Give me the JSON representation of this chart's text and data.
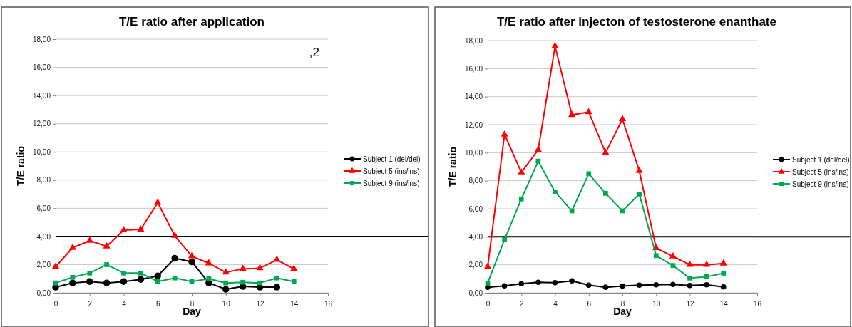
{
  "chart_data": [
    {
      "type": "line",
      "title": "T/E ratio after application",
      "xlabel": "Day",
      "ylabel": "T/E ratio",
      "annotations": [
        ",2"
      ],
      "xlim": [
        0,
        16
      ],
      "xticks": [
        0,
        2,
        4,
        6,
        8,
        10,
        12,
        14,
        16
      ],
      "ylim": [
        0,
        18
      ],
      "yticks": [
        {
          "value": 0,
          "label": "0,00"
        },
        {
          "value": 2,
          "label": "2,00"
        },
        {
          "value": 4,
          "label": "4,00"
        },
        {
          "value": 6,
          "label": "6,00"
        },
        {
          "value": 8,
          "label": "8,00"
        },
        {
          "value": 10,
          "label": "10,00"
        },
        {
          "value": 12,
          "label": "12,00"
        },
        {
          "value": 14,
          "label": "14,00"
        },
        {
          "value": 16,
          "label": "16,00"
        },
        {
          "value": 18,
          "label": "18,00"
        }
      ],
      "grid": "y",
      "legend": "right",
      "line_style": "solid",
      "ref_lines": [
        {
          "axis": "y",
          "value": 4,
          "color": "#000000"
        }
      ],
      "series": [
        {
          "name": "Subject 1 (del/del)",
          "color": "#000000",
          "marker": "circle",
          "x": [
            0,
            1,
            2,
            3,
            4,
            5,
            6,
            7,
            8,
            9,
            10,
            11,
            12,
            13
          ],
          "values": [
            0.4,
            0.7,
            0.8,
            0.7,
            0.8,
            0.95,
            1.2,
            2.45,
            2.2,
            0.7,
            0.25,
            0.45,
            0.4,
            0.4
          ]
        },
        {
          "name": "Subject 5 (ins/ins)",
          "color": "#ff0000",
          "marker": "triangle",
          "x": [
            0,
            1,
            2,
            3,
            4,
            5,
            6,
            7,
            8,
            9,
            10,
            11,
            12,
            13,
            14
          ],
          "values": [
            1.85,
            3.2,
            3.7,
            3.3,
            4.45,
            4.5,
            6.4,
            4.05,
            2.6,
            2.1,
            1.45,
            1.7,
            1.75,
            2.35,
            1.7
          ]
        },
        {
          "name": "Subject 9 (ins/ins)",
          "color": "#00a84f",
          "marker": "square",
          "x": [
            0,
            1,
            2,
            3,
            4,
            5,
            6,
            7,
            8,
            9,
            10,
            11,
            12,
            13,
            14
          ],
          "values": [
            0.7,
            1.1,
            1.4,
            2.0,
            1.4,
            1.4,
            0.8,
            1.05,
            0.8,
            1.0,
            0.7,
            0.75,
            0.7,
            1.05,
            0.8
          ]
        }
      ]
    },
    {
      "type": "line",
      "title": "T/E ratio after injecton of testosterone enanthate",
      "xlabel": "Day",
      "ylabel": "T/E ratio",
      "xlim": [
        0,
        16
      ],
      "xticks": [
        0,
        2,
        4,
        6,
        8,
        10,
        12,
        14,
        16
      ],
      "ylim": [
        0,
        18
      ],
      "yticks": [
        {
          "value": 0,
          "label": "0,00"
        },
        {
          "value": 2,
          "label": "2,00"
        },
        {
          "value": 4,
          "label": "4,00"
        },
        {
          "value": 6,
          "label": "6,00"
        },
        {
          "value": 8,
          "label": "8,00"
        },
        {
          "value": 10,
          "label": "10,00"
        },
        {
          "value": 12,
          "label": "12,00"
        },
        {
          "value": 14,
          "label": "14,00"
        },
        {
          "value": 16,
          "label": "16,00"
        },
        {
          "value": 18,
          "label": "18,00"
        }
      ],
      "grid": "y",
      "legend": "right",
      "line_style": "solid",
      "ref_lines": [
        {
          "axis": "y",
          "value": 4,
          "color": "#000000"
        }
      ],
      "series": [
        {
          "name": "Subject 1 (del/del)",
          "color": "#000000",
          "marker": "circle",
          "x": [
            0,
            1,
            2,
            3,
            4,
            5,
            6,
            7,
            8,
            9,
            10,
            11,
            12,
            13,
            14
          ],
          "values": [
            0.4,
            0.5,
            0.65,
            0.75,
            0.72,
            0.85,
            0.55,
            0.4,
            0.48,
            0.55,
            0.57,
            0.6,
            0.52,
            0.57,
            0.42
          ]
        },
        {
          "name": "Subject 5 (ins/ins)",
          "color": "#ff0000",
          "marker": "triangle",
          "x": [
            0,
            1,
            2,
            3,
            4,
            5,
            6,
            7,
            8,
            9,
            10,
            11,
            12,
            13,
            14
          ],
          "values": [
            1.85,
            11.3,
            8.6,
            10.2,
            17.6,
            12.7,
            12.9,
            10.0,
            12.4,
            8.7,
            3.2,
            2.6,
            2.0,
            2.0,
            2.1
          ]
        },
        {
          "name": "Subject 9 (ins/ins)",
          "color": "#00a84f",
          "marker": "square",
          "x": [
            0,
            1,
            2,
            3,
            4,
            5,
            6,
            7,
            8,
            9,
            10,
            11,
            12,
            13,
            14
          ],
          "values": [
            0.7,
            3.8,
            6.7,
            9.4,
            7.2,
            5.85,
            8.5,
            7.1,
            5.85,
            7.05,
            2.65,
            1.95,
            1.05,
            1.15,
            1.4
          ]
        }
      ]
    }
  ]
}
